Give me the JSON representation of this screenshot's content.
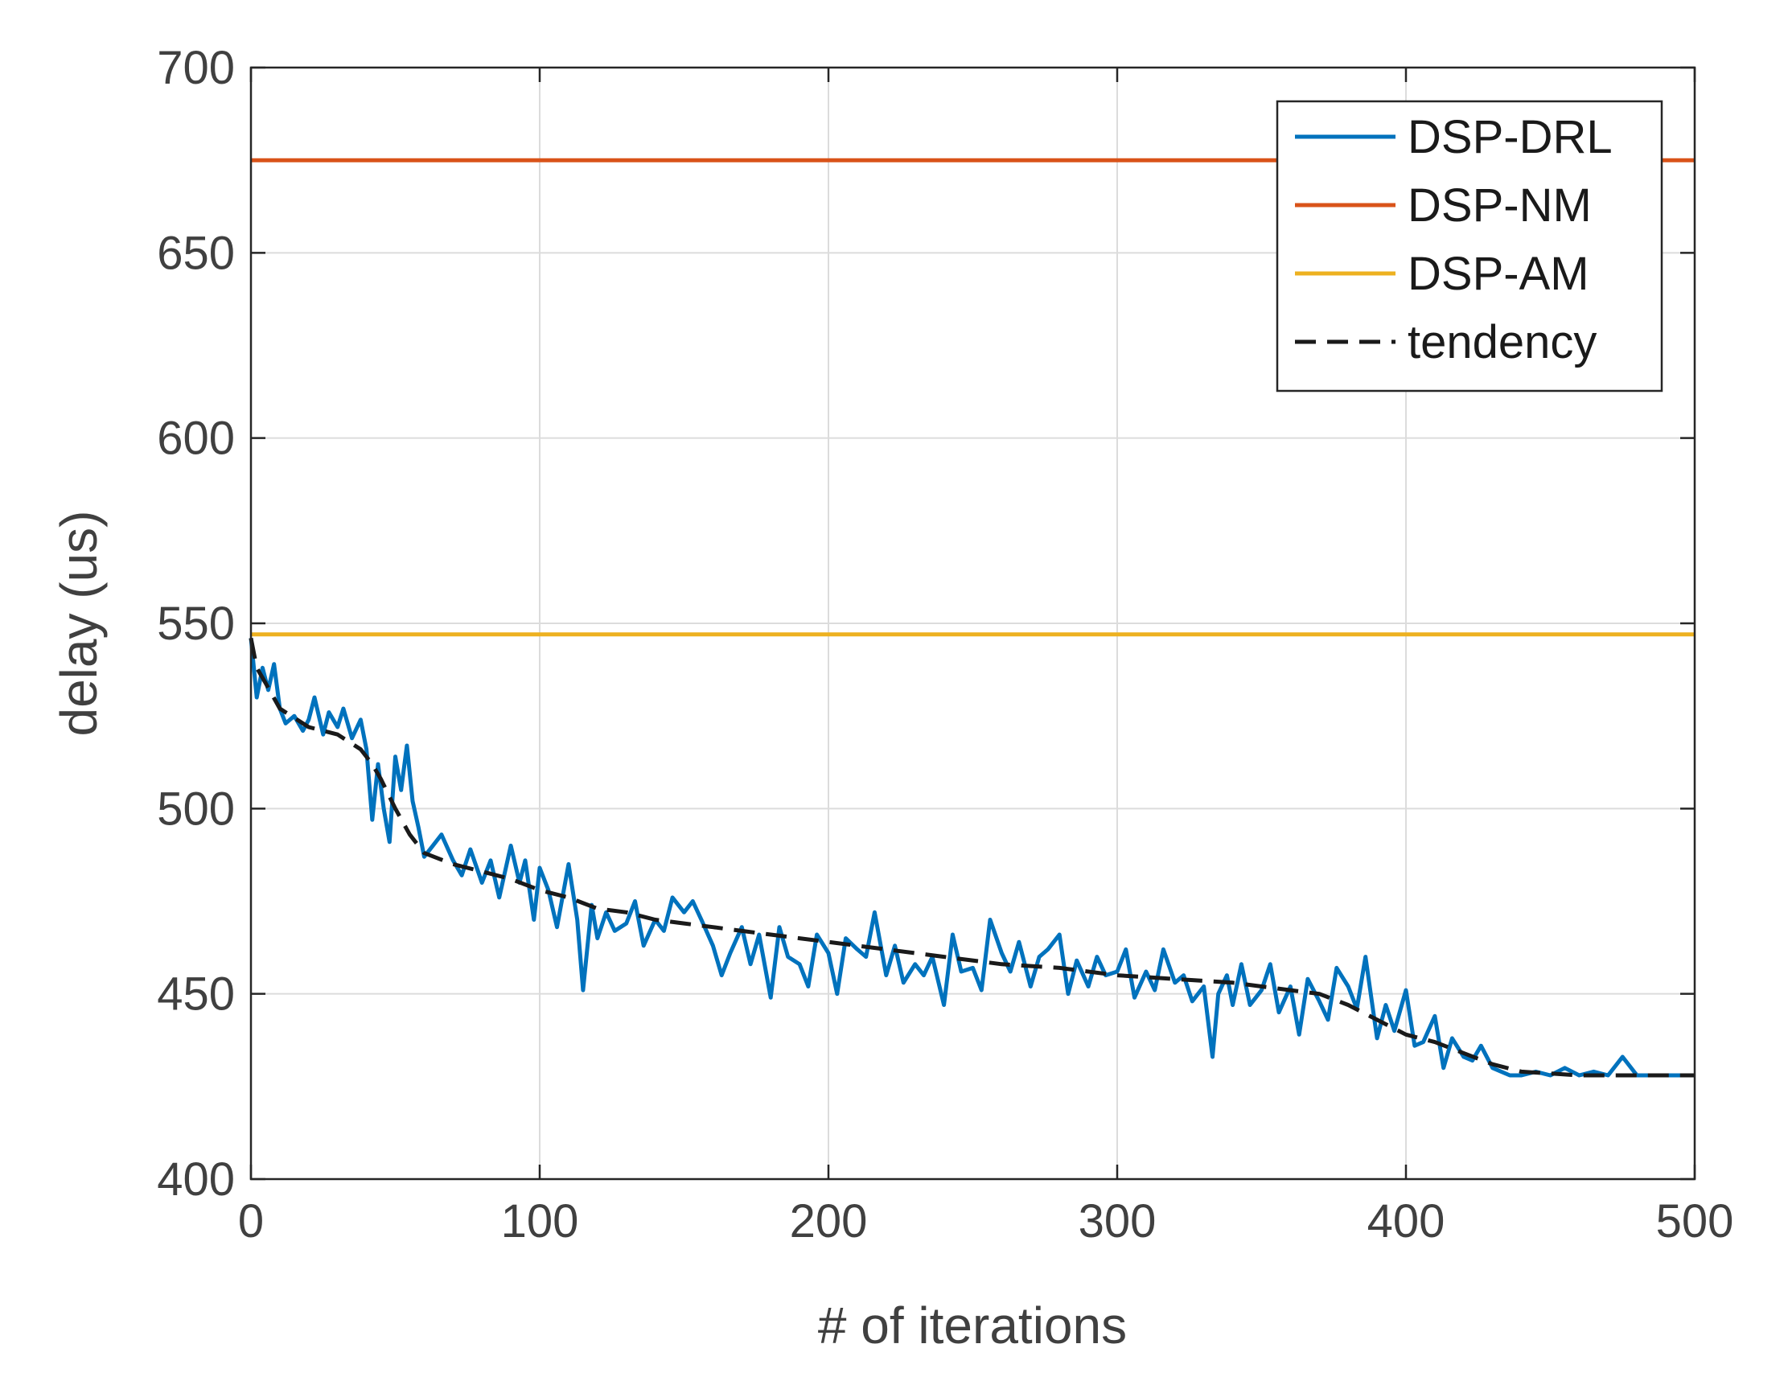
{
  "chart_data": {
    "type": "line",
    "title": "",
    "xlabel": "# of iterations",
    "ylabel": "delay (us)",
    "xlim": [
      0,
      500
    ],
    "ylim": [
      400,
      700
    ],
    "xticks": [
      0,
      100,
      200,
      300,
      400,
      500
    ],
    "yticks": [
      400,
      450,
      500,
      550,
      600,
      650,
      700
    ],
    "grid": true,
    "legend_position": "top-right",
    "series": [
      {
        "name": "DSP-DRL",
        "color": "#0072BD",
        "style": "solid",
        "x": [
          0,
          2,
          4,
          6,
          8,
          10,
          12,
          15,
          18,
          20,
          22,
          25,
          27,
          30,
          32,
          35,
          38,
          40,
          42,
          44,
          46,
          48,
          50,
          52,
          54,
          56,
          58,
          60,
          63,
          66,
          70,
          73,
          76,
          80,
          83,
          86,
          90,
          93,
          95,
          98,
          100,
          103,
          106,
          110,
          113,
          115,
          118,
          120,
          123,
          126,
          130,
          133,
          136,
          140,
          143,
          146,
          150,
          153,
          156,
          160,
          163,
          166,
          170,
          173,
          176,
          180,
          183,
          186,
          190,
          193,
          196,
          200,
          203,
          206,
          210,
          213,
          216,
          220,
          223,
          226,
          230,
          233,
          236,
          240,
          243,
          246,
          250,
          253,
          256,
          260,
          263,
          266,
          270,
          273,
          276,
          280,
          283,
          286,
          290,
          293,
          296,
          300,
          303,
          306,
          310,
          313,
          316,
          320,
          323,
          326,
          330,
          333,
          335,
          338,
          340,
          343,
          346,
          350,
          353,
          356,
          360,
          363,
          366,
          370,
          373,
          376,
          380,
          383,
          386,
          390,
          393,
          396,
          400,
          403,
          406,
          410,
          413,
          416,
          420,
          423,
          426,
          430,
          433,
          436,
          440,
          445,
          450,
          455,
          460,
          465,
          470,
          475,
          480,
          485,
          490,
          495,
          500
        ],
        "values": [
          546,
          530,
          538,
          532,
          539,
          527,
          523,
          525,
          521,
          524,
          530,
          520,
          526,
          522,
          527,
          519,
          524,
          516,
          497,
          512,
          500,
          491,
          514,
          505,
          517,
          502,
          495,
          487,
          490,
          493,
          486,
          482,
          489,
          480,
          486,
          476,
          490,
          480,
          486,
          470,
          484,
          478,
          468,
          485,
          470,
          451,
          474,
          465,
          472,
          467,
          469,
          475,
          463,
          470,
          467,
          476,
          472,
          475,
          470,
          463,
          455,
          461,
          468,
          458,
          466,
          449,
          468,
          460,
          458,
          452,
          466,
          461,
          450,
          465,
          462,
          460,
          472,
          455,
          463,
          453,
          458,
          455,
          460,
          447,
          466,
          456,
          457,
          451,
          470,
          461,
          456,
          464,
          452,
          460,
          462,
          466,
          450,
          459,
          452,
          460,
          455,
          456,
          462,
          449,
          456,
          451,
          462,
          453,
          455,
          448,
          452,
          433,
          450,
          455,
          447,
          458,
          447,
          451,
          458,
          445,
          452,
          439,
          454,
          448,
          443,
          457,
          452,
          446,
          460,
          438,
          447,
          440,
          451,
          436,
          437,
          444,
          430,
          438,
          433,
          432,
          436,
          430,
          429,
          428,
          428,
          429,
          428,
          430,
          428,
          429,
          428,
          433,
          428,
          428,
          428,
          428,
          428
        ]
      },
      {
        "name": "DSP-NM",
        "color": "#D95319",
        "style": "solid",
        "x": [
          0,
          500
        ],
        "values": [
          675,
          675
        ]
      },
      {
        "name": "DSP-AM",
        "color": "#EDB120",
        "style": "solid",
        "x": [
          0,
          500
        ],
        "values": [
          547,
          547
        ]
      },
      {
        "name": "tendency",
        "color": "#1a1a1a",
        "style": "dashed",
        "x": [
          0,
          2,
          5,
          10,
          20,
          30,
          38,
          42,
          45,
          50,
          55,
          60,
          70,
          80,
          90,
          100,
          110,
          120,
          130,
          140,
          150,
          160,
          170,
          180,
          190,
          200,
          220,
          240,
          260,
          280,
          300,
          320,
          340,
          360,
          370,
          380,
          390,
          400,
          410,
          420,
          430,
          440,
          460,
          480,
          500
        ],
        "values": [
          546,
          538,
          534,
          527,
          522,
          520,
          516,
          512,
          508,
          500,
          493,
          488,
          485,
          483,
          481,
          478,
          476,
          473,
          472,
          470,
          469,
          468,
          467,
          466,
          465,
          464,
          462,
          460,
          458,
          457,
          455,
          454,
          453,
          451,
          450,
          447,
          443,
          439,
          437,
          434,
          431,
          429,
          428,
          428,
          428
        ]
      }
    ]
  }
}
